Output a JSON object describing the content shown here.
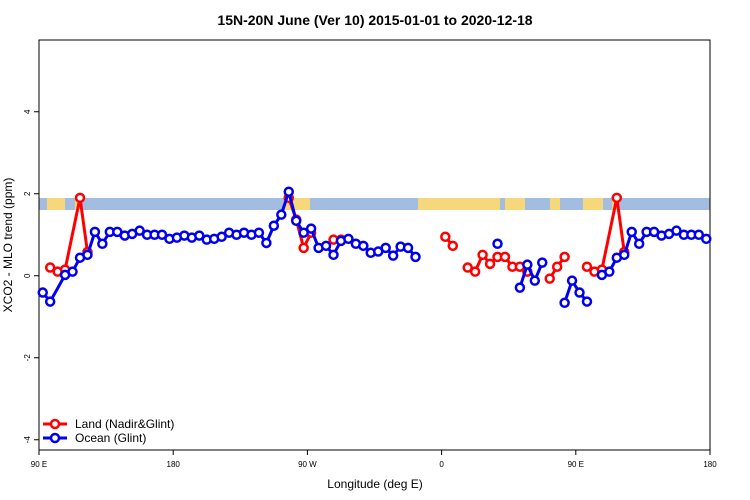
{
  "chart_data": {
    "type": "line",
    "title": "15N-20N June (Ver 10)   2015-01-01 to 2020-12-18",
    "xlabel": "Longitude (deg E)",
    "ylabel": "XCO2 - MLO trend (ppm)",
    "xlim": [
      90,
      540
    ],
    "xticks": [
      {
        "value": 90,
        "label": "90 E"
      },
      180,
      {
        "value": 270,
        "label": "90 W"
      },
      0,
      {
        "value": 450,
        "label": "90 E"
      },
      {
        "value": 540,
        "label": "180"
      }
    ],
    "ylim": [
      -4.25,
      5.75
    ],
    "yticks": [
      -4,
      -2,
      0,
      2,
      4
    ],
    "legend": "bottomleft",
    "series": [
      {
        "name": "Land (Nadir&Glint)",
        "color": "#ff0000",
        "x": [
          97.5,
          102.5,
          107.5,
          117.5,
          122.5,
          127.5,
          257.5,
          262.5,
          267.5,
          272.5,
          277.5,
          287.5,
          292.5,
          297.5,
          362.5,
          367.5,
          372.5,
          377.5,
          382.5,
          387.5,
          392.5,
          397.5,
          402.5,
          407.5,
          412.5,
          417.5,
          422.5,
          432.5,
          437.5,
          442.5,
          447.5,
          457.5,
          462.5,
          467.5,
          477.5,
          482.5
        ],
        "values": [
          0.2,
          0.1,
          0.15,
          1.9,
          0.58,
          null,
          1.9,
          1.37,
          0.68,
          1.05,
          null,
          0.88,
          0.88,
          null,
          0.95,
          0.73,
          null,
          0.2,
          0.1,
          0.51,
          0.29,
          0.46,
          0.46,
          0.22,
          0.22,
          0.1,
          null,
          -0.07,
          0.22,
          0.46,
          null,
          0.22,
          0.1,
          0.15,
          1.9,
          0.58
        ]
      },
      {
        "name": "Ocean (Glint)",
        "color": "#0000ee",
        "x": [
          92.5,
          97.5,
          107.5,
          112.5,
          117.5,
          122.5,
          127.5,
          132.5,
          137.5,
          142.5,
          147.5,
          152.5,
          157.5,
          162.5,
          167.5,
          172.5,
          177.5,
          182.5,
          187.5,
          192.5,
          197.5,
          202.5,
          207.5,
          212.5,
          217.5,
          222.5,
          227.5,
          232.5,
          237.5,
          242.5,
          247.5,
          252.5,
          257.5,
          262.5,
          267.5,
          272.5,
          277.5,
          282.5,
          287.5,
          292.5,
          297.5,
          302.5,
          307.5,
          312.5,
          317.5,
          322.5,
          327.5,
          332.5,
          337.5,
          342.5,
          347.5,
          397.5,
          402.5,
          412.5,
          417.5,
          422.5,
          427.5,
          432.5,
          442.5,
          447.5,
          452.5,
          457.5,
          462.5,
          467.5,
          472.5,
          477.5,
          482.5,
          487.5,
          492.5,
          497.5,
          502.5,
          507.5,
          512.5,
          517.5,
          522.5,
          527.5,
          532.5,
          537.5
        ],
        "values": [
          -0.41,
          -0.63,
          0.02,
          0.1,
          0.44,
          0.51,
          1.07,
          0.78,
          1.07,
          1.07,
          0.98,
          1.02,
          1.1,
          1.0,
          1.0,
          1.0,
          0.9,
          0.93,
          0.98,
          0.93,
          0.98,
          0.88,
          0.9,
          0.95,
          1.05,
          1.0,
          1.05,
          1.0,
          1.05,
          0.8,
          1.22,
          1.49,
          2.05,
          1.34,
          1.05,
          1.15,
          0.68,
          0.73,
          0.51,
          0.85,
          0.9,
          0.78,
          0.73,
          0.56,
          0.59,
          0.68,
          0.49,
          0.71,
          0.68,
          0.46,
          null,
          0.78,
          null,
          -0.29,
          0.27,
          -0.12,
          0.32,
          null,
          -0.66,
          -0.12,
          -0.41,
          -0.63,
          null,
          0.02,
          0.1,
          0.44,
          0.51,
          1.07,
          0.78,
          1.07,
          1.07,
          0.98,
          1.02,
          1.1,
          1.0,
          1.0,
          1.0,
          0.9
        ]
      }
    ]
  }
}
